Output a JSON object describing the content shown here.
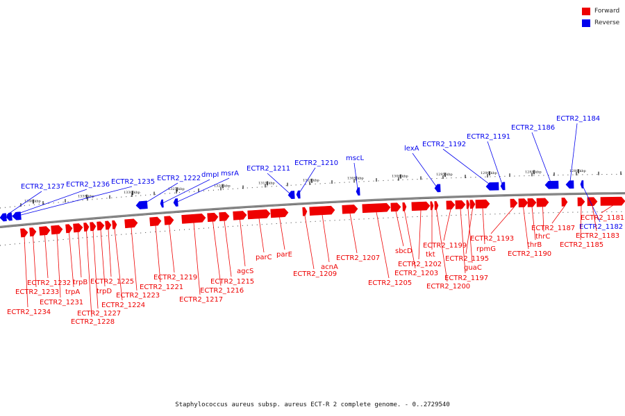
{
  "legend": {
    "forward_label": "Forward",
    "reverse_label": "Reverse",
    "forward_color": "#ee0000",
    "reverse_color": "#0000ee"
  },
  "caption": "Staphylococcus aureus subsp. aureus ECT-R 2 complete genome. - 0..2729540",
  "ticks": [
    {
      "kbp": 1340,
      "label": "1340 kbp"
    },
    {
      "kbp": 1335,
      "label": "1335 kbp"
    },
    {
      "kbp": 1330,
      "label": "1330 kbp"
    },
    {
      "kbp": 1325,
      "label": "1325 kbp"
    },
    {
      "kbp": 1320,
      "label": "1320 kbp"
    },
    {
      "kbp": 1315,
      "label": "1315 kbp"
    },
    {
      "kbp": 1310,
      "label": "1310 kbp"
    },
    {
      "kbp": 1305,
      "label": "1305 kbp"
    },
    {
      "kbp": 1300,
      "label": "1300 kbp"
    },
    {
      "kbp": 1295,
      "label": "1295 kbp"
    },
    {
      "kbp": 1290,
      "label": "1290 kbp"
    },
    {
      "kbp": 1285,
      "label": "1285 kbp"
    },
    {
      "kbp": 1280,
      "label": "1280 kbp"
    }
  ],
  "reverse_genes": [
    "ECTR2_1237",
    "ECTR2_1236",
    "ECTR2_1235",
    "ECTR2_1222",
    "dmpI",
    "msrA",
    "ECTR2_1211",
    "ECTR2_1210",
    "mscL",
    "lexA",
    "ECTR2_1192",
    "ECTR2_1191",
    "ECTR2_1186",
    "ECTR2_1184",
    "ECTR2_1182"
  ],
  "forward_genes": [
    "ECTR2_1234",
    "ECTR2_1233",
    "ECTR2_1232",
    "ECTR2_1231",
    "trpA",
    "trpB",
    "ECTR2_1228",
    "ECTR2_1227",
    "trpD",
    "ECTR2_1225",
    "ECTR2_1224",
    "ECTR2_1223",
    "ECTR2_1221",
    "ECTR2_1219",
    "ECTR2_1217",
    "ECTR2_1216",
    "ECTR2_1215",
    "agcS",
    "parC",
    "parE",
    "ECTR2_1209",
    "acnA",
    "ECTR2_1207",
    "ECTR2_1205",
    "sbcD",
    "ECTR2_1203",
    "ECTR2_1202",
    "tkt",
    "ECTR2_1200",
    "ECTR2_1199",
    "ECTR2_1197",
    "guaC",
    "ECTR2_1195",
    "rpmG",
    "ECTR2_1193",
    "ECTR2_1190",
    "thrB",
    "thrC",
    "ECTR2_1187",
    "ECTR2_1185",
    "ECTR2_1183",
    "ECTR2_1181"
  ]
}
